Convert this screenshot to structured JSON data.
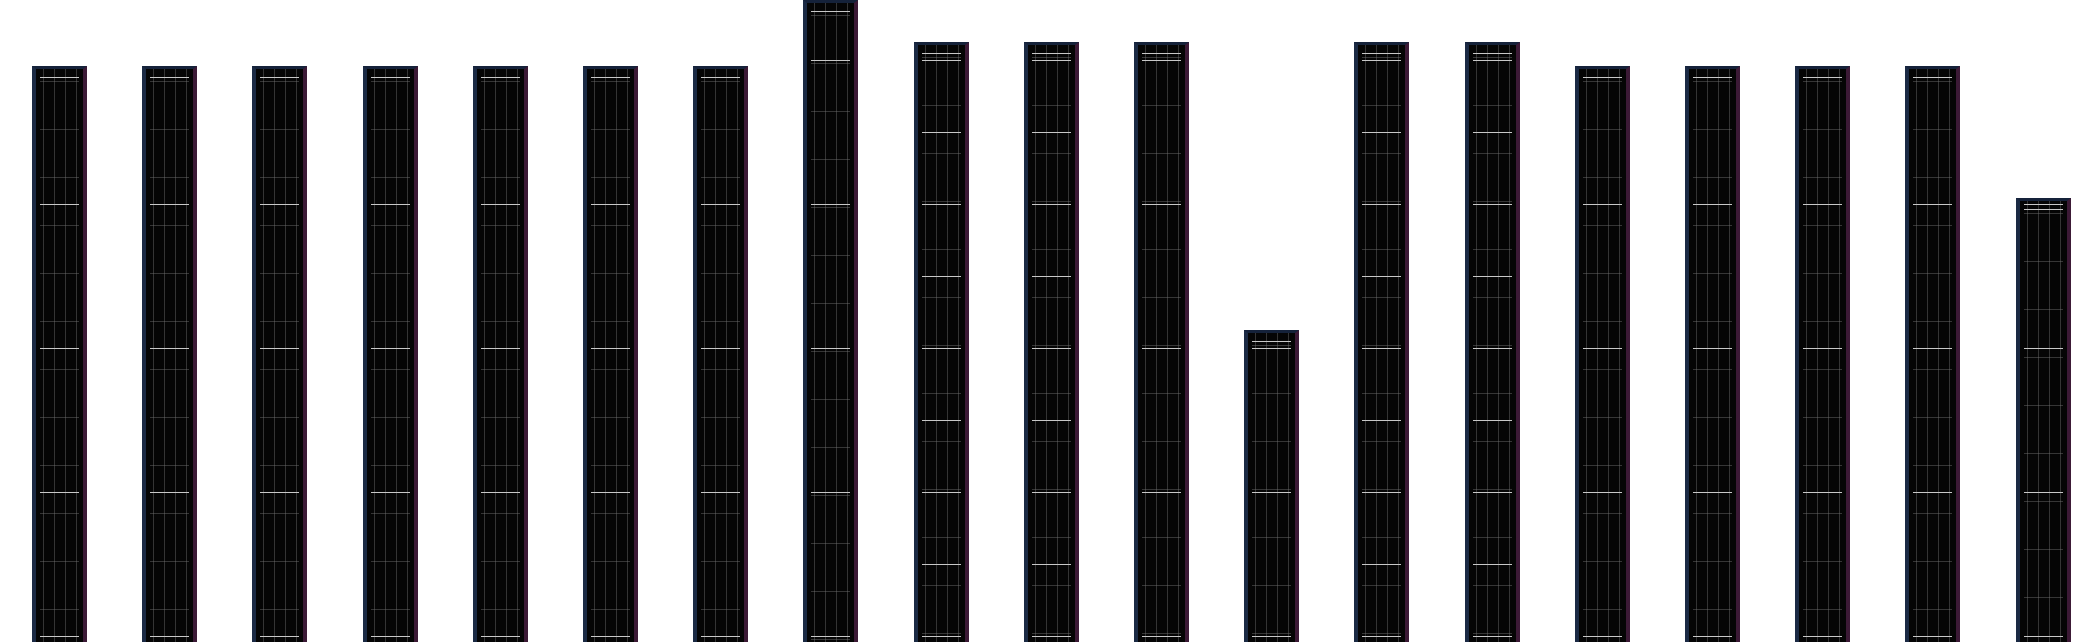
{
  "palette": {
    "background": "#ffffff",
    "column_fill": "#050505",
    "column_edge_left": "#1b2a44",
    "column_edge_right": "#3c1a36",
    "grid_line": "#6e6e6e",
    "tick_line": "#c8c8c8"
  },
  "columns": [
    {
      "id": 1,
      "level": 8,
      "marker_every": 2
    },
    {
      "id": 2,
      "level": 8,
      "marker_every": 2
    },
    {
      "id": 3,
      "level": 8,
      "marker_every": 2
    },
    {
      "id": 4,
      "level": 8,
      "marker_every": 2
    },
    {
      "id": 5,
      "level": 8,
      "marker_every": 2
    },
    {
      "id": 6,
      "level": 8,
      "marker_every": 2
    },
    {
      "id": 7,
      "level": 8,
      "marker_every": 2
    },
    {
      "id": 8,
      "level": 9,
      "marker_every": 2
    },
    {
      "id": 9,
      "level": 8.33,
      "marker_every": 1
    },
    {
      "id": 10,
      "level": 8.33,
      "marker_every": 1
    },
    {
      "id": 11,
      "level": 8.33,
      "marker_every": 2
    },
    {
      "id": 12,
      "level": 4.33,
      "marker_every": 2
    },
    {
      "id": 13,
      "level": 8.33,
      "marker_every": 1
    },
    {
      "id": 14,
      "level": 8.33,
      "marker_every": 1
    },
    {
      "id": 15,
      "level": 8,
      "marker_every": 2
    },
    {
      "id": 16,
      "level": 8,
      "marker_every": 2
    },
    {
      "id": 17,
      "level": 8,
      "marker_every": 2
    },
    {
      "id": 18,
      "level": 8,
      "marker_every": 2
    },
    {
      "id": 19,
      "level": 6.17,
      "marker_every": 2
    }
  ]
}
